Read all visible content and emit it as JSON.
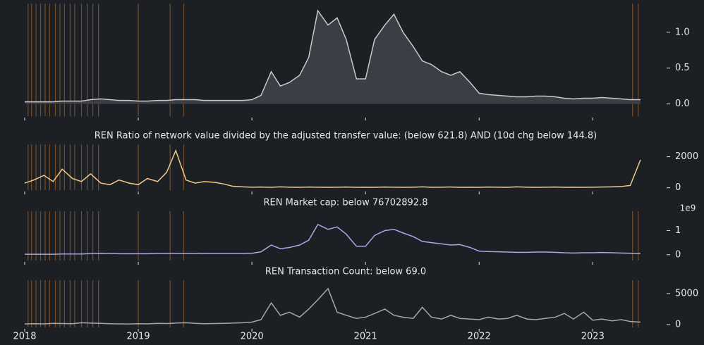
{
  "chart_data": [
    {
      "type": "line",
      "area": true,
      "color": "#c9c9c9",
      "fill": "#3b3e44",
      "x": [
        2018.0,
        2018.08,
        2018.17,
        2018.25,
        2018.33,
        2018.42,
        2018.5,
        2018.58,
        2018.67,
        2018.75,
        2018.83,
        2018.92,
        2019.0,
        2019.08,
        2019.17,
        2019.25,
        2019.33,
        2019.42,
        2019.5,
        2019.58,
        2019.67,
        2019.75,
        2019.83,
        2019.92,
        2020.0,
        2020.08,
        2020.17,
        2020.25,
        2020.33,
        2020.42,
        2020.5,
        2020.58,
        2020.67,
        2020.75,
        2020.83,
        2020.92,
        2021.0,
        2021.08,
        2021.17,
        2021.25,
        2021.33,
        2021.42,
        2021.5,
        2021.58,
        2021.67,
        2021.75,
        2021.83,
        2021.92,
        2022.0,
        2022.08,
        2022.17,
        2022.25,
        2022.33,
        2022.42,
        2022.5,
        2022.58,
        2022.67,
        2022.75,
        2022.83,
        2022.92,
        2023.0,
        2023.08,
        2023.17,
        2023.25,
        2023.33,
        2023.42
      ],
      "values": [
        0.03,
        0.03,
        0.03,
        0.03,
        0.04,
        0.04,
        0.04,
        0.06,
        0.07,
        0.06,
        0.05,
        0.05,
        0.04,
        0.04,
        0.05,
        0.05,
        0.06,
        0.06,
        0.06,
        0.05,
        0.05,
        0.05,
        0.05,
        0.05,
        0.06,
        0.12,
        0.45,
        0.25,
        0.3,
        0.4,
        0.65,
        1.3,
        1.1,
        1.2,
        0.9,
        0.35,
        0.35,
        0.9,
        1.1,
        1.25,
        1.0,
        0.8,
        0.6,
        0.55,
        0.45,
        0.4,
        0.45,
        0.3,
        0.15,
        0.13,
        0.12,
        0.11,
        0.1,
        0.1,
        0.11,
        0.11,
        0.1,
        0.08,
        0.07,
        0.08,
        0.08,
        0.09,
        0.08,
        0.07,
        0.06,
        0.06
      ],
      "xlim": [
        2018,
        2023.65
      ],
      "ylim": [
        -0.17,
        1.4
      ],
      "yticks": [
        {
          "value": 0,
          "label": "0.0"
        },
        {
          "value": 0.5,
          "label": "0.5"
        },
        {
          "value": 1,
          "label": "1.0"
        }
      ],
      "highlights": [
        2018.03,
        2018.06,
        2018.1,
        2018.14,
        2018.18,
        2018.22,
        2018.27,
        2018.31,
        2018.35,
        2018.4,
        2018.44,
        2018.5,
        2018.55,
        2018.6,
        2018.65,
        2019.0,
        2019.28,
        2019.4,
        2023.35,
        2023.4
      ],
      "highlight_color": "#8a5a2e"
    },
    {
      "type": "line",
      "color": "#f0c987",
      "title": "REN Ratio of network value divided by the adjusted transfer value: (below 621.8) AND (10d chg below 144.8)",
      "x": [
        2018.0,
        2018.08,
        2018.17,
        2018.25,
        2018.33,
        2018.42,
        2018.5,
        2018.58,
        2018.67,
        2018.75,
        2018.83,
        2018.92,
        2019.0,
        2019.08,
        2019.17,
        2019.25,
        2019.33,
        2019.42,
        2019.5,
        2019.58,
        2019.67,
        2019.75,
        2019.83,
        2019.92,
        2020.0,
        2020.08,
        2020.17,
        2020.25,
        2020.33,
        2020.42,
        2020.5,
        2020.58,
        2020.67,
        2020.75,
        2020.83,
        2020.92,
        2021.0,
        2021.08,
        2021.17,
        2021.25,
        2021.33,
        2021.42,
        2021.5,
        2021.58,
        2021.67,
        2021.75,
        2021.83,
        2021.92,
        2022.0,
        2022.08,
        2022.17,
        2022.25,
        2022.33,
        2022.42,
        2022.5,
        2022.58,
        2022.67,
        2022.75,
        2022.83,
        2022.92,
        2023.0,
        2023.08,
        2023.17,
        2023.25,
        2023.33,
        2023.42
      ],
      "values": [
        300,
        500,
        800,
        400,
        1200,
        600,
        400,
        900,
        300,
        200,
        500,
        300,
        200,
        600,
        400,
        1000,
        2400,
        500,
        300,
        400,
        350,
        250,
        100,
        60,
        40,
        50,
        30,
        60,
        40,
        30,
        50,
        40,
        30,
        40,
        50,
        30,
        40,
        30,
        50,
        40,
        30,
        40,
        60,
        30,
        40,
        50,
        30,
        40,
        30,
        50,
        40,
        30,
        60,
        40,
        30,
        40,
        50,
        30,
        40,
        30,
        40,
        50,
        60,
        80,
        150,
        1800
      ],
      "xlim": [
        2018,
        2023.65
      ],
      "ylim": [
        -150,
        2800
      ],
      "yticks": [
        0,
        2000
      ],
      "highlights": [
        2018.03,
        2018.06,
        2018.1,
        2018.14,
        2018.18,
        2018.22,
        2018.27,
        2018.31,
        2018.35,
        2018.4,
        2018.44,
        2018.5,
        2018.55,
        2018.6,
        2018.65,
        2019.0,
        2019.28,
        2019.4
      ],
      "highlight_color": "#8a5a2e"
    },
    {
      "type": "line",
      "color": "#a9a9e3",
      "title": "REN Market cap: below 76702892.8",
      "yaxis_multiplier": "1e9",
      "x": [
        2018.0,
        2018.08,
        2018.17,
        2018.25,
        2018.33,
        2018.42,
        2018.5,
        2018.58,
        2018.67,
        2018.75,
        2018.83,
        2018.92,
        2019.0,
        2019.08,
        2019.17,
        2019.25,
        2019.33,
        2019.42,
        2019.5,
        2019.58,
        2019.67,
        2019.75,
        2019.83,
        2019.92,
        2020.0,
        2020.08,
        2020.17,
        2020.25,
        2020.33,
        2020.42,
        2020.5,
        2020.58,
        2020.67,
        2020.75,
        2020.83,
        2020.92,
        2021.0,
        2021.08,
        2021.17,
        2021.25,
        2021.33,
        2021.42,
        2021.5,
        2021.58,
        2021.67,
        2021.75,
        2021.83,
        2021.92,
        2022.0,
        2022.08,
        2022.17,
        2022.25,
        2022.33,
        2022.42,
        2022.5,
        2022.58,
        2022.67,
        2022.75,
        2022.83,
        2022.92,
        2023.0,
        2023.08,
        2023.17,
        2023.25,
        2023.33,
        2023.42
      ],
      "values": [
        0.02,
        0.02,
        0.02,
        0.02,
        0.03,
        0.03,
        0.03,
        0.05,
        0.06,
        0.05,
        0.04,
        0.04,
        0.04,
        0.04,
        0.05,
        0.05,
        0.06,
        0.06,
        0.06,
        0.05,
        0.05,
        0.05,
        0.05,
        0.05,
        0.06,
        0.12,
        0.4,
        0.25,
        0.3,
        0.4,
        0.6,
        1.25,
        1.05,
        1.15,
        0.85,
        0.35,
        0.35,
        0.8,
        1.0,
        1.05,
        0.9,
        0.75,
        0.55,
        0.5,
        0.45,
        0.4,
        0.42,
        0.3,
        0.15,
        0.13,
        0.12,
        0.11,
        0.1,
        0.1,
        0.11,
        0.11,
        0.1,
        0.08,
        0.07,
        0.08,
        0.08,
        0.09,
        0.08,
        0.07,
        0.06,
        0.06
      ],
      "xlim": [
        2018,
        2023.65
      ],
      "ylim": [
        -0.24,
        1.8
      ],
      "yticks": [
        0,
        1
      ],
      "highlights": [
        2018.03,
        2018.06,
        2018.1,
        2018.14,
        2018.18,
        2018.22,
        2018.27,
        2018.31,
        2018.35,
        2018.4,
        2018.44,
        2018.5,
        2018.55,
        2018.6,
        2018.65,
        2019.0,
        2019.28,
        2019.4,
        2023.35,
        2023.4
      ],
      "highlight_color": "#8a5a2e"
    },
    {
      "type": "line",
      "color": "#a8a8a8",
      "title": "REN Transaction Count: below 69.0",
      "x": [
        2018.0,
        2018.08,
        2018.17,
        2018.25,
        2018.33,
        2018.42,
        2018.5,
        2018.58,
        2018.67,
        2018.75,
        2018.83,
        2018.92,
        2019.0,
        2019.08,
        2019.17,
        2019.25,
        2019.33,
        2019.42,
        2019.5,
        2019.58,
        2019.67,
        2019.75,
        2019.83,
        2019.92,
        2020.0,
        2020.08,
        2020.17,
        2020.25,
        2020.33,
        2020.42,
        2020.5,
        2020.58,
        2020.67,
        2020.75,
        2020.83,
        2020.92,
        2021.0,
        2021.08,
        2021.17,
        2021.25,
        2021.33,
        2021.42,
        2021.5,
        2021.58,
        2021.67,
        2021.75,
        2021.83,
        2021.92,
        2022.0,
        2022.08,
        2022.17,
        2022.25,
        2022.33,
        2022.42,
        2022.5,
        2022.58,
        2022.67,
        2022.75,
        2022.83,
        2022.92,
        2023.0,
        2023.08,
        2023.17,
        2023.25,
        2023.33,
        2023.42
      ],
      "values": [
        100,
        150,
        120,
        200,
        180,
        150,
        300,
        250,
        200,
        150,
        120,
        100,
        150,
        120,
        200,
        180,
        250,
        300,
        200,
        150,
        180,
        200,
        250,
        300,
        400,
        800,
        3500,
        1500,
        2000,
        1200,
        2500,
        4000,
        5800,
        2000,
        1500,
        1000,
        1200,
        1800,
        2500,
        1500,
        1200,
        1000,
        2800,
        1200,
        900,
        1500,
        1000,
        900,
        800,
        1200,
        900,
        1000,
        1500,
        900,
        800,
        1000,
        1200,
        1800,
        900,
        2000,
        700,
        900,
        600,
        800,
        500,
        400
      ],
      "xlim": [
        2018,
        2023.65
      ],
      "ylim": [
        -450,
        7150
      ],
      "yticks": [
        0,
        5000
      ],
      "xticks": [
        2018,
        2019,
        2020,
        2021,
        2022,
        2023
      ],
      "highlights": [
        2018.03,
        2018.06,
        2018.1,
        2018.14,
        2018.18,
        2018.22,
        2018.27,
        2018.31,
        2018.35,
        2018.4,
        2018.44,
        2018.5,
        2018.55,
        2018.6,
        2018.65,
        2019.0,
        2019.28,
        2019.4,
        2023.35,
        2023.4
      ],
      "highlight_color": "#8a5a2e"
    }
  ]
}
